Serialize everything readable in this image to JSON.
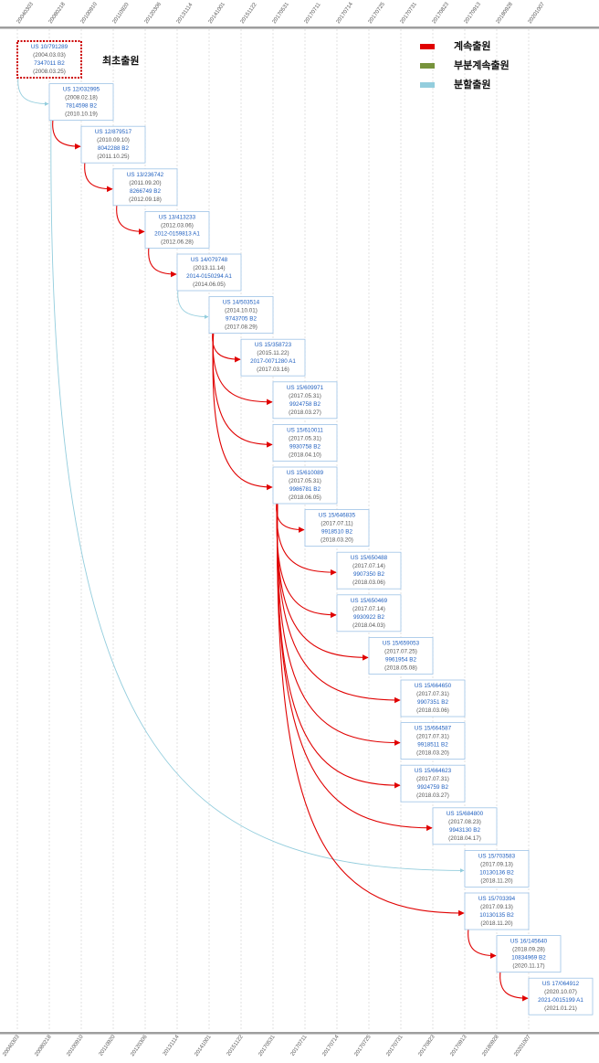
{
  "timeline_dates": [
    "20040303",
    "20080218",
    "20100910",
    "20110920",
    "20120306",
    "20131114",
    "20141001",
    "20151122",
    "20170531",
    "20170711",
    "20170714",
    "20170725",
    "20170731",
    "20170823",
    "20170913",
    "20180928",
    "20201007"
  ],
  "first_filing_label": "최초출원",
  "legend": [
    {
      "label": "계속출원",
      "color": "#e00000"
    },
    {
      "label": "부분계속출원",
      "color": "#77933c"
    },
    {
      "label": "분할출원",
      "color": "#93cddd"
    }
  ],
  "colors": {
    "continuation": "#e00000",
    "divisional": "#93cddd",
    "first_border": "#cc0000",
    "link_text": "#1f5fbf",
    "date_text": "#555555",
    "node_border": "#9ec3e6",
    "grid": "#cfcfcf",
    "axis_bar": "#9e9e9e"
  },
  "applications": [
    {
      "app": "US 10/791289",
      "filed": "(2004.03.03)",
      "pub": "7347011 B2",
      "issued": "(2008.03.25)",
      "lane": 0,
      "parent": null,
      "relation": "first"
    },
    {
      "app": "US 12/032995",
      "filed": "(2008.02.18)",
      "pub": "7814598 B2",
      "issued": "(2010.10.19)",
      "lane": 1,
      "parent": 0,
      "relation": "divisional"
    },
    {
      "app": "US 12/879517",
      "filed": "(2010.09.10)",
      "pub": "8042288 B2",
      "issued": "(2011.10.25)",
      "lane": 2,
      "parent": 1,
      "relation": "continuation"
    },
    {
      "app": "US 13/236742",
      "filed": "(2011.09.20)",
      "pub": "8266749 B2",
      "issued": "(2012.09.18)",
      "lane": 3,
      "parent": 2,
      "relation": "continuation"
    },
    {
      "app": "US 13/413233",
      "filed": "(2012.03.06)",
      "pub": "2012-0159813 A1",
      "issued": "(2012.06.28)",
      "lane": 4,
      "parent": 3,
      "relation": "continuation"
    },
    {
      "app": "US 14/079748",
      "filed": "(2013.11.14)",
      "pub": "2014-0150294 A1",
      "issued": "(2014.06.05)",
      "lane": 5,
      "parent": 4,
      "relation": "continuation"
    },
    {
      "app": "US 14/503514",
      "filed": "(2014.10.01)",
      "pub": "9743705 B2",
      "issued": "(2017.08.29)",
      "lane": 6,
      "parent": 5,
      "relation": "divisional"
    },
    {
      "app": "US 15/358723",
      "filed": "(2015.11.22)",
      "pub": "2017-0071280 A1",
      "issued": "(2017.03.16)",
      "lane": 7,
      "parent": 6,
      "relation": "continuation"
    },
    {
      "app": "US 15/609971",
      "filed": "(2017.05.31)",
      "pub": "9924758 B2",
      "issued": "(2018.03.27)",
      "lane": 8,
      "parent": 6,
      "relation": "continuation"
    },
    {
      "app": "US 15/610011",
      "filed": "(2017.05.31)",
      "pub": "9930758 B2",
      "issued": "(2018.04.10)",
      "lane": 8,
      "parent": 6,
      "relation": "continuation"
    },
    {
      "app": "US 15/610089",
      "filed": "(2017.05.31)",
      "pub": "9986781 B2",
      "issued": "(2018.06.05)",
      "lane": 8,
      "parent": 6,
      "relation": "continuation"
    },
    {
      "app": "US 15/646835",
      "filed": "(2017.07.11)",
      "pub": "9918510 B2",
      "issued": "(2018.03.20)",
      "lane": 9,
      "parent": 10,
      "relation": "continuation"
    },
    {
      "app": "US 15/650488",
      "filed": "(2017.07.14)",
      "pub": "9907350 B2",
      "issued": "(2018.03.06)",
      "lane": 10,
      "parent": 10,
      "relation": "continuation"
    },
    {
      "app": "US 15/650469",
      "filed": "(2017.07.14)",
      "pub": "9930922 B2",
      "issued": "(2018.04.03)",
      "lane": 10,
      "parent": 10,
      "relation": "continuation"
    },
    {
      "app": "US 15/659053",
      "filed": "(2017.07.25)",
      "pub": "9961954 B2",
      "issued": "(2018.05.08)",
      "lane": 11,
      "parent": 10,
      "relation": "continuation"
    },
    {
      "app": "US 15/664650",
      "filed": "(2017.07.31)",
      "pub": "9907351 B2",
      "issued": "(2018.03.06)",
      "lane": 12,
      "parent": 10,
      "relation": "continuation"
    },
    {
      "app": "US 15/664587",
      "filed": "(2017.07.31)",
      "pub": "9918511 B2",
      "issued": "(2018.03.20)",
      "lane": 12,
      "parent": 10,
      "relation": "continuation"
    },
    {
      "app": "US 15/664623",
      "filed": "(2017.07.31)",
      "pub": "9924759 B2",
      "issued": "(2018.03.27)",
      "lane": 12,
      "parent": 10,
      "relation": "continuation"
    },
    {
      "app": "US 15/684800",
      "filed": "(2017.08.23)",
      "pub": "9943130 B2",
      "issued": "(2018.04.17)",
      "lane": 13,
      "parent": 10,
      "relation": "continuation"
    },
    {
      "app": "US 15/703583",
      "filed": "(2017.09.13)",
      "pub": "10130136 B2",
      "issued": "(2018.11.20)",
      "lane": 14,
      "parent": 1,
      "relation": "divisional"
    },
    {
      "app": "US 15/703394",
      "filed": "(2017.09.13)",
      "pub": "10130135 B2",
      "issued": "(2018.11.20)",
      "lane": 14,
      "parent": 10,
      "relation": "continuation"
    },
    {
      "app": "US 16/145640",
      "filed": "(2018.09.28)",
      "pub": "10834969 B2",
      "issued": "(2020.11.17)",
      "lane": 15,
      "parent": 20,
      "relation": "continuation"
    },
    {
      "app": "US 17/064912",
      "filed": "(2020.10.07)",
      "pub": "2021-0015199 A1",
      "issued": "(2021.01.21)",
      "lane": 16,
      "parent": 21,
      "relation": "continuation"
    }
  ]
}
